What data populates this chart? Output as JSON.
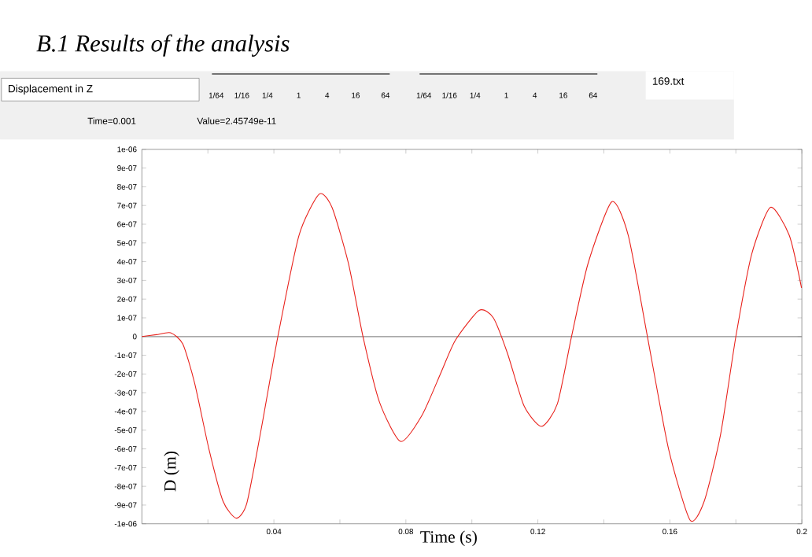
{
  "chart_data": {
    "type": "line",
    "title": "B.1 Results of the analysis",
    "subtitle": "Displacement in Z",
    "xlabel": "Time (s)",
    "ylabel": "D (m)",
    "annotations": [
      "1/64",
      "1/16",
      "1/4",
      "1",
      "4",
      "16",
      "64",
      "1/64",
      "1/16",
      "1/4",
      "1",
      "4",
      "16",
      "64",
      "169.txt",
      "Time=0.001",
      "Value=2.45749e-11"
    ],
    "color": "#e8201a",
    "x": [
      0,
      0.0044,
      0.0087,
      0.0124,
      0.016,
      0.0203,
      0.0246,
      0.0286,
      0.0318,
      0.0361,
      0.0412,
      0.0476,
      0.0537,
      0.0576,
      0.0626,
      0.067,
      0.072,
      0.0784,
      0.0849,
      0.0907,
      0.095,
      0.1022,
      0.1065,
      0.1108,
      0.1158,
      0.1211,
      0.1259,
      0.1302,
      0.1352,
      0.1424,
      0.1474,
      0.1532,
      0.1596,
      0.1661,
      0.1704,
      0.1754,
      0.18,
      0.1848,
      0.1905,
      0.1962,
      0.1999
    ],
    "values": [
      0,
      1e-08,
      2e-08,
      -4e-08,
      -2.5e-07,
      -6e-07,
      -8.8e-07,
      -9.7e-07,
      -8.9e-07,
      -5e-07,
      0,
      5.4e-07,
      7.6e-07,
      6.9e-07,
      3.9e-07,
      0,
      -3.5e-07,
      -5.6e-07,
      -4.2e-07,
      -1.9e-07,
      -2e-08,
      1.4e-07,
      1e-07,
      -9e-08,
      -3.7e-07,
      -4.8e-07,
      -3.6e-07,
      0,
      3.9e-07,
      7.2e-07,
      5.4e-07,
      0,
      -6e-07,
      -9.8e-07,
      -8.8e-07,
      -5.2e-07,
      0,
      4.4e-07,
      6.9e-07,
      5.4e-07,
      2.6e-07
    ],
    "xlim": [
      0,
      0.2
    ],
    "ylim": [
      -1e-06,
      1e-06
    ],
    "xticks": [
      {
        "value": 0.02,
        "label": null
      },
      0.04,
      {
        "value": 0.06,
        "label": null
      },
      0.08,
      {
        "value": 0.1,
        "label": null
      },
      0.12,
      {
        "value": 0.14,
        "label": null
      },
      0.16,
      {
        "value": 0.18,
        "label": null
      },
      0.2
    ],
    "yticks": [
      {
        "value": 1e-06,
        "label": "1e-06"
      },
      {
        "value": 9e-07,
        "label": "9e-07"
      },
      {
        "value": 8e-07,
        "label": "8e-07"
      },
      {
        "value": 7e-07,
        "label": "7e-07"
      },
      {
        "value": 6e-07,
        "label": "6e-07"
      },
      {
        "value": 5e-07,
        "label": "5e-07"
      },
      {
        "value": 4e-07,
        "label": "4e-07"
      },
      {
        "value": 3e-07,
        "label": "3e-07"
      },
      {
        "value": 2e-07,
        "label": "2e-07"
      },
      {
        "value": 1e-07,
        "label": "1e-07"
      },
      0,
      {
        "value": -1e-07,
        "label": "-1e-07"
      },
      {
        "value": -2e-07,
        "label": "-2e-07"
      },
      {
        "value": -3e-07,
        "label": "-3e-07"
      },
      {
        "value": -4e-07,
        "label": "-4e-07"
      },
      {
        "value": -5e-07,
        "label": "-5e-07"
      },
      {
        "value": -6e-07,
        "label": "-6e-07"
      },
      {
        "value": -7e-07,
        "label": "-7e-07"
      },
      {
        "value": -8e-07,
        "label": "-8e-07"
      },
      {
        "value": -9e-07,
        "label": "-9e-07"
      },
      {
        "value": -1e-06,
        "label": "-1e-06"
      }
    ],
    "ref_lines": [
      {
        "axis": "y",
        "value": 0,
        "color": "#8c8c8c"
      }
    ]
  }
}
